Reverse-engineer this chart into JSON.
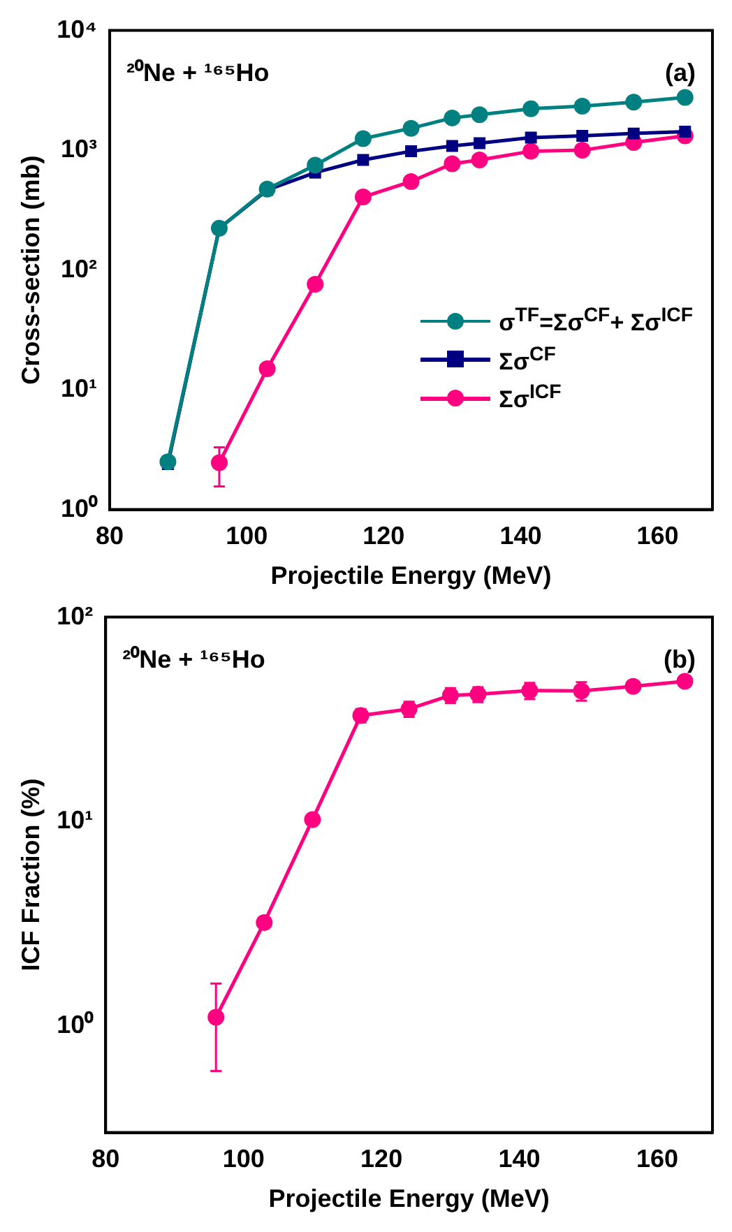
{
  "chart_data": [
    {
      "type": "line",
      "xlabel": "Projectile Energy (MeV)",
      "ylabel": "Cross-section (mb)",
      "annotations": [
        "²⁰Ne + ¹⁶⁵Ho",
        "(a)"
      ],
      "log": "y",
      "grid": false,
      "legend": "right",
      "line_style": "solid",
      "xlim": [
        80,
        168
      ],
      "xticks": [
        80,
        100,
        120,
        140,
        160
      ],
      "ylim": [
        1,
        10000
      ],
      "yticks": [
        {
          "value": 1,
          "label": "10⁰"
        },
        {
          "value": 10,
          "label": "10¹"
        },
        {
          "value": 100,
          "label": "10²"
        },
        {
          "value": 1000,
          "label": "10³"
        },
        {
          "value": 10000,
          "label": "10⁴"
        }
      ],
      "series": [
        {
          "name": "σ$^{TF}$=Σσ$^{CF}$+ Σσ$^{ICF}$",
          "color": "#008080",
          "marker": "circle",
          "x": [
            88.5,
            96,
            103,
            110,
            117,
            124,
            130,
            134,
            141.5,
            149,
            156.5,
            164
          ],
          "values": [
            2.5,
            223,
            474,
            750,
            1250,
            1525,
            1860,
            1980,
            2220,
            2330,
            2520,
            2760
          ]
        },
        {
          "name": "Σσ$^{CF}$",
          "color": "#000080",
          "marker": "square",
          "x": [
            88.5,
            96,
            103,
            110,
            117,
            124,
            130,
            134,
            141.5,
            149,
            156.5,
            164
          ],
          "values": [
            2.4,
            223,
            466,
            650,
            830,
            980,
            1085,
            1145,
            1275,
            1320,
            1380,
            1430
          ]
        },
        {
          "name": "Σσ$^{ICF}$",
          "color": "#ff0080",
          "marker": "circle",
          "x": [
            96,
            103,
            110,
            117,
            124,
            130,
            134,
            141.5,
            149,
            156.5,
            164
          ],
          "values": [
            2.46,
            15,
            76,
            407,
            548,
            770,
            830,
            980,
            1000,
            1160,
            1320
          ],
          "errors": [
            [
              1.56,
              3.31
            ],
            null,
            null,
            null,
            null,
            null,
            null,
            null,
            null,
            null,
            null
          ]
        }
      ]
    },
    {
      "type": "line",
      "xlabel": "Projectile Energy (MeV)",
      "ylabel": "ICF Fraction (%)",
      "annotations": [
        "²⁰Ne + ¹⁶⁵Ho",
        "(b)"
      ],
      "log": "y",
      "grid": false,
      "line_style": "solid",
      "marker": "circle",
      "xlim": [
        80,
        168
      ],
      "xticks": [
        80,
        100,
        120,
        140,
        160
      ],
      "ylim": [
        0.3,
        100
      ],
      "yticks": [
        {
          "value": 1,
          "label": "10⁰"
        },
        {
          "value": 10,
          "label": "10¹"
        },
        {
          "value": 100,
          "label": "10²"
        }
      ],
      "x": [
        96,
        103,
        110,
        117,
        124,
        130,
        134,
        141.5,
        149,
        156.5,
        164
      ],
      "series": [
        {
          "color": "#ff0080",
          "values": [
            1.1,
            3.2,
            10.2,
            33,
            35.5,
            41.4,
            41.9,
            43.7,
            43.5,
            45.8,
            48.5
          ],
          "errors": [
            [
              0.6,
              1.61
            ],
            0.2,
            null,
            2.5,
            3,
            3.5,
            3.5,
            4,
            4.5,
            null,
            null
          ]
        }
      ]
    }
  ]
}
